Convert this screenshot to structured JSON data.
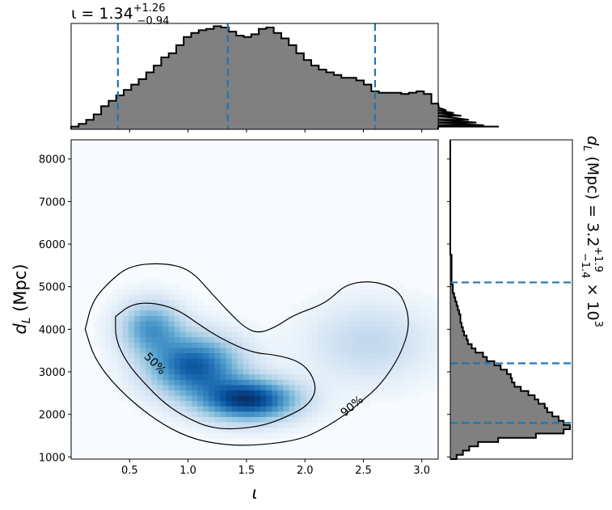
{
  "chart_data": [
    {
      "type": "heatmap",
      "panel": "joint",
      "xlabel": "ι",
      "ylabel_base": "d",
      "ylabel_sub": "L",
      "ylabel_unit": " (Mpc)",
      "xlim": [
        0.0,
        3.14
      ],
      "ylim": [
        950,
        8450
      ],
      "xticks": [
        0.5,
        1.0,
        1.5,
        2.0,
        2.5,
        3.0
      ],
      "xtick_labels": [
        "0.5",
        "1.0",
        "1.5",
        "2.0",
        "2.5",
        "3.0"
      ],
      "yticks": [
        1000,
        2000,
        3000,
        4000,
        5000,
        6000,
        7000,
        8000
      ],
      "ytick_labels": [
        "1000",
        "2000",
        "3000",
        "4000",
        "5000",
        "6000",
        "7000",
        "8000"
      ],
      "colormap": "Blues",
      "density_peaks": [
        {
          "x": 1.52,
          "y": 2350,
          "sx": 0.28,
          "sy": 330,
          "w": 1.0
        },
        {
          "x": 1.05,
          "y": 3150,
          "sx": 0.27,
          "sy": 480,
          "w": 0.85
        },
        {
          "x": 0.68,
          "y": 4050,
          "sx": 0.18,
          "sy": 420,
          "w": 0.55
        },
        {
          "x": 2.55,
          "y": 3700,
          "sx": 0.35,
          "sy": 620,
          "w": 0.22
        }
      ],
      "contours": [
        {
          "label": "50%",
          "label_pos": [
            0.72,
            3200
          ],
          "points": [
            [
              0.38,
              4300
            ],
            [
              0.52,
              4600
            ],
            [
              0.72,
              4620
            ],
            [
              0.92,
              4450
            ],
            [
              1.1,
              4100
            ],
            [
              1.3,
              3750
            ],
            [
              1.55,
              3450
            ],
            [
              1.75,
              3400
            ],
            [
              1.95,
              3250
            ],
            [
              2.06,
              2950
            ],
            [
              2.1,
              2550
            ],
            [
              2.02,
              2200
            ],
            [
              1.85,
              1950
            ],
            [
              1.65,
              1740
            ],
            [
              1.4,
              1650
            ],
            [
              1.2,
              1680
            ],
            [
              1.0,
              1900
            ],
            [
              0.8,
              2250
            ],
            [
              0.62,
              2750
            ],
            [
              0.48,
              3200
            ],
            [
              0.38,
              3750
            ],
            [
              0.38,
              4300
            ]
          ]
        },
        {
          "label": "90%",
          "label_pos": [
            2.4,
            2200
          ],
          "points": [
            [
              0.12,
              4000
            ],
            [
              0.18,
              4650
            ],
            [
              0.32,
              5100
            ],
            [
              0.5,
              5500
            ],
            [
              0.8,
              5560
            ],
            [
              1.02,
              5400
            ],
            [
              1.2,
              4850
            ],
            [
              1.35,
              4400
            ],
            [
              1.48,
              4050
            ],
            [
              1.6,
              3900
            ],
            [
              1.75,
              4050
            ],
            [
              1.9,
              4330
            ],
            [
              2.12,
              4550
            ],
            [
              2.22,
              4720
            ],
            [
              2.35,
              5050
            ],
            [
              2.55,
              5140
            ],
            [
              2.75,
              5000
            ],
            [
              2.85,
              4700
            ],
            [
              2.9,
              4100
            ],
            [
              2.82,
              3400
            ],
            [
              2.65,
              2700
            ],
            [
              2.48,
              2300
            ],
            [
              2.35,
              2000
            ],
            [
              2.15,
              1650
            ],
            [
              1.95,
              1400
            ],
            [
              1.6,
              1270
            ],
            [
              1.3,
              1280
            ],
            [
              1.0,
              1450
            ],
            [
              0.7,
              1900
            ],
            [
              0.4,
              2600
            ],
            [
              0.2,
              3300
            ],
            [
              0.12,
              4000
            ]
          ]
        }
      ]
    },
    {
      "type": "bar",
      "panel": "top-marginal",
      "title_main": "ι = 1.34",
      "title_sup": "+1.26",
      "title_sub": "−0.94",
      "x_edges_start": 0.0,
      "bin_width": 0.0642,
      "values": [
        2,
        4,
        7,
        11,
        17,
        21,
        25,
        29,
        33,
        37,
        42,
        47,
        53,
        56,
        62,
        68,
        71,
        73,
        74,
        76,
        75,
        72,
        69,
        68,
        70,
        74,
        75,
        71,
        67,
        62,
        56,
        51,
        47,
        44,
        42,
        40,
        38,
        38,
        36,
        33,
        28,
        27,
        27,
        27,
        26,
        27,
        28,
        26,
        19,
        16,
        14,
        12,
        10,
        7,
        5,
        3,
        2,
        2
      ],
      "ymax": 78,
      "median": 1.34,
      "lower": 0.4,
      "upper": 2.6,
      "histogram_color": "#808080",
      "line_color": "#1f77b4"
    },
    {
      "type": "bar",
      "panel": "right-marginal",
      "orientation": "horizontal",
      "label_base": "d",
      "label_sub": "L",
      "label_rest": " (Mpc) = 3.2",
      "label_sup": "+1.9",
      "label_sub2": "−1.4",
      "label_times": " × 10",
      "label_exp": "3",
      "y_edges_start": 950,
      "bin_width": 100,
      "values": [
        5,
        10,
        15,
        22,
        38,
        68,
        90,
        95,
        90,
        86,
        81,
        77,
        75,
        70,
        67,
        62,
        56,
        51,
        49,
        48,
        45,
        40,
        35,
        29,
        26,
        20,
        17,
        14,
        13,
        11,
        10,
        9,
        8,
        8,
        7,
        6,
        5,
        4,
        3,
        2,
        2,
        1,
        1,
        1,
        1,
        1,
        1,
        1,
        0,
        0,
        0,
        0,
        0,
        0,
        0,
        0,
        0,
        0,
        0,
        0,
        0,
        0,
        0,
        0,
        0,
        0,
        0,
        0,
        0,
        0,
        0,
        0,
        0,
        0,
        0
      ],
      "xmax": 95,
      "median": 3200,
      "lower": 1800,
      "upper": 5100,
      "histogram_color": "#808080",
      "line_color": "#1f77b4"
    }
  ]
}
